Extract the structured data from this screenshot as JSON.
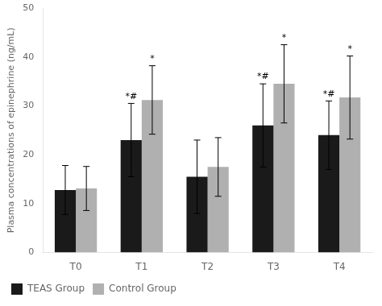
{
  "chart_data": {
    "type": "bar",
    "categories": [
      "T0",
      "T1",
      "T2",
      "T3",
      "T4"
    ],
    "series": [
      {
        "name": "TEAS Group",
        "color": "#1a1a1a",
        "values": [
          12.8,
          23.0,
          15.5,
          26.0,
          24.0
        ],
        "errors": [
          5.0,
          7.5,
          7.5,
          8.5,
          7.0
        ],
        "annotations": [
          null,
          "*#",
          null,
          "*#",
          "*#"
        ]
      },
      {
        "name": "Control Group",
        "color": "#b0b0b0",
        "values": [
          13.1,
          31.2,
          17.5,
          34.5,
          31.7
        ],
        "errors": [
          4.5,
          7.0,
          6.0,
          8.0,
          8.5
        ],
        "annotations": [
          null,
          "*",
          null,
          "*",
          "*"
        ]
      }
    ],
    "ylabel": "Plasma concentrations of epinephrine (ng/mL)",
    "ylim": [
      0,
      50
    ],
    "yticks": [
      0,
      10,
      20,
      30,
      40,
      50
    ],
    "grid": false,
    "legend": "lower left"
  }
}
